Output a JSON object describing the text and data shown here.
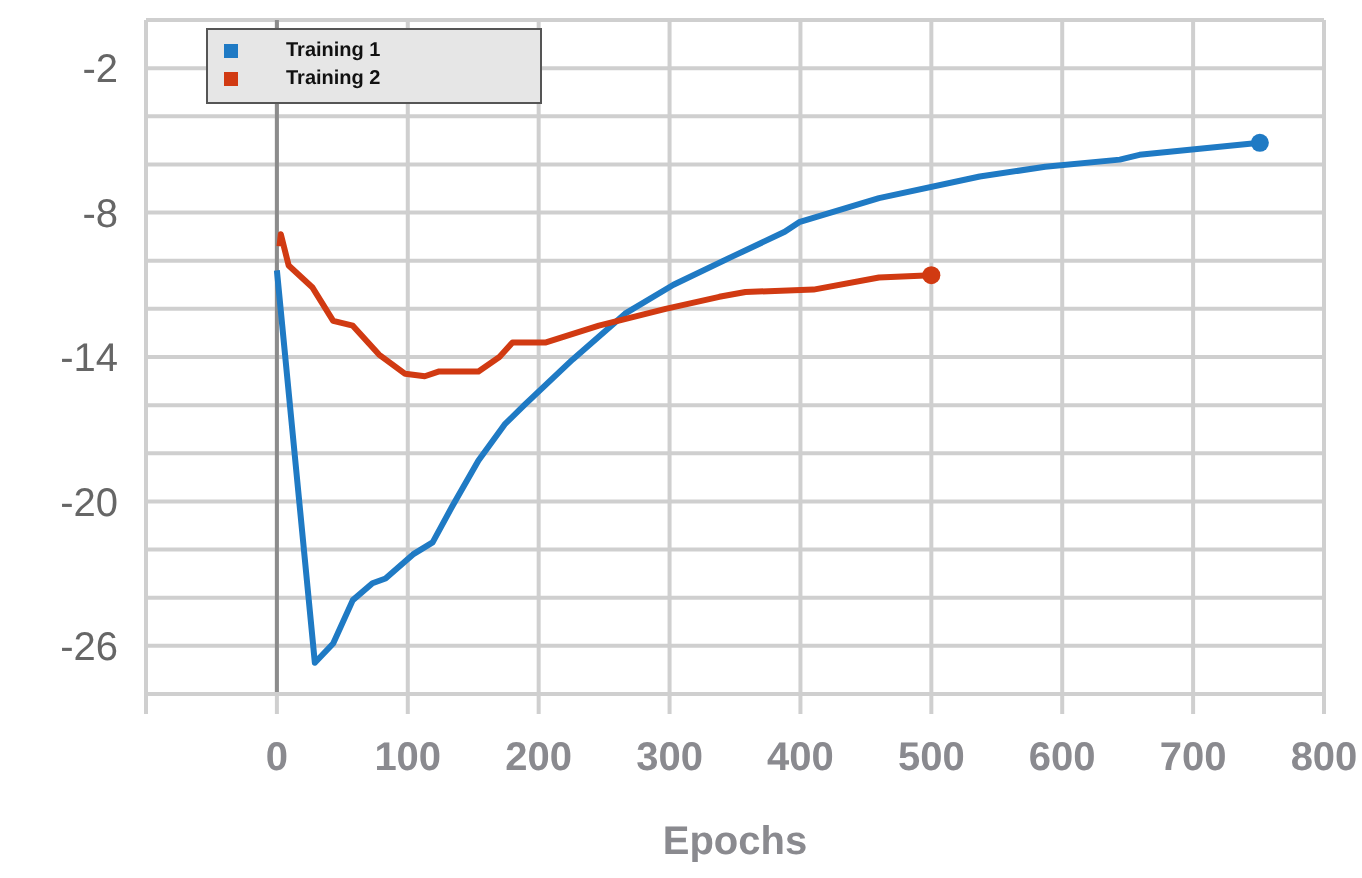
{
  "chart_data": {
    "type": "line",
    "xlabel": "Epochs",
    "legend": "top left",
    "grid": true,
    "line_style": "solid",
    "xlim": [
      -100,
      800
    ],
    "xticks": [
      {
        "value": -100,
        "label": null
      },
      0,
      100,
      200,
      300,
      400,
      500,
      600,
      700,
      800
    ],
    "ylim": [
      -28,
      0
    ],
    "yticks": [
      {
        "value": -28,
        "label": null
      },
      -26,
      {
        "value": -24,
        "label": null
      },
      {
        "value": -22,
        "label": null
      },
      -20,
      {
        "value": -18,
        "label": null
      },
      {
        "value": -16,
        "label": null
      },
      -14,
      {
        "value": -12,
        "label": null
      },
      {
        "value": -10,
        "label": null
      },
      -8,
      {
        "value": -6,
        "label": null
      },
      {
        "value": -4,
        "label": null
      },
      -2,
      {
        "value": 0,
        "label": null
      }
    ],
    "ref_lines": [
      {
        "axis": "x",
        "value": 0,
        "label": null,
        "color": "#8c8c8c"
      }
    ],
    "series": [
      {
        "name": "Training 1",
        "color": "#1f7ac4",
        "x": [
          0,
          29,
          43,
          58,
          73,
          83,
          104,
          119,
          134,
          154,
          174,
          189,
          226,
          266,
          303,
          349,
          388,
          399,
          460,
          537,
          587,
          644,
          659,
          751
        ],
        "values": [
          -10.4,
          -26.7,
          -25.9,
          -24.1,
          -23.4,
          -23.2,
          -22.2,
          -21.7,
          -20.2,
          -18.3,
          -16.8,
          -16.0,
          -14.1,
          -12.2,
          -11.0,
          -9.8,
          -8.8,
          -8.4,
          -7.4,
          -6.5,
          -6.1,
          -5.8,
          -5.6,
          -5.1
        ]
      },
      {
        "name": "Training 2",
        "color": "#d13a12",
        "x": [
          2,
          3,
          9,
          27,
          43,
          58,
          78,
          98,
          113,
          124,
          154,
          170,
          180,
          205,
          246,
          297,
          338,
          358,
          410,
          460,
          500
        ],
        "values": [
          -9.4,
          -8.9,
          -10.2,
          -11.1,
          -12.5,
          -12.7,
          -13.9,
          -14.7,
          -14.8,
          -14.6,
          -14.6,
          -14.0,
          -13.4,
          -13.4,
          -12.7,
          -12.0,
          -11.5,
          -11.3,
          -11.2,
          -10.7,
          -10.6
        ]
      },
      {
        "type": "scatter",
        "marker": "circle",
        "color": "#1f7ac4",
        "x": [
          751
        ],
        "values": [
          -5.1
        ]
      },
      {
        "type": "scatter",
        "marker": "circle",
        "color": "#d13a12",
        "x": [
          500
        ],
        "values": [
          -10.6
        ]
      }
    ]
  }
}
